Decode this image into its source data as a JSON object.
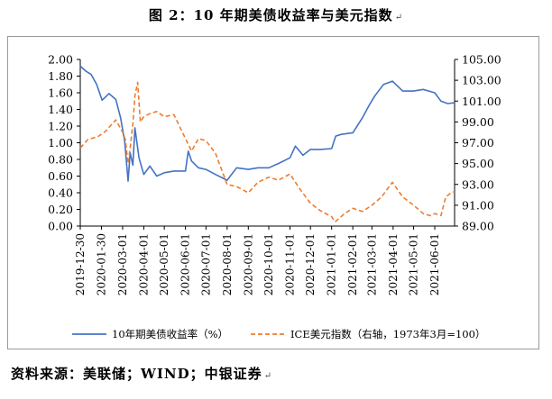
{
  "figure": {
    "title": "图 2：10 年期美债收益率与美元指数",
    "source": "资料来源：美联储；WIND；中银证券",
    "para_mark": "↵"
  },
  "colors": {
    "yield": "#4472c4",
    "dxy": "#ed7d31",
    "axis": "#000000",
    "frame": "#9a9a9a"
  },
  "chart_data": {
    "type": "line",
    "x_tick_labels": [
      "2019-12-30",
      "2020-01-30",
      "2020-03-01",
      "2020-04-01",
      "2020-05-01",
      "2020-06-01",
      "2020-07-01",
      "2020-08-01",
      "2020-09-01",
      "2020-10-01",
      "2020-11-01",
      "2020-12-01",
      "2021-01-01",
      "2021-02-01",
      "2021-03-01",
      "2021-04-01",
      "2021-05-01",
      "2021-06-01"
    ],
    "y_left": {
      "min": 0,
      "max": 2,
      "ticks": [
        "0.00",
        "0.20",
        "0.40",
        "0.60",
        "0.80",
        "1.00",
        "1.20",
        "1.40",
        "1.60",
        "1.80",
        "2.00"
      ]
    },
    "y_right": {
      "min": 89,
      "max": 105,
      "ticks": [
        "89.00",
        "91.00",
        "93.00",
        "95.00",
        "97.00",
        "99.00",
        "101.00",
        "103.00",
        "105.00"
      ]
    },
    "series": [
      {
        "name": "10年期美债收益率（%）",
        "axis": "left",
        "style": "solid",
        "x": [
          "2019-12-30",
          "2020-01-07",
          "2020-01-15",
          "2020-01-23",
          "2020-01-31",
          "2020-02-10",
          "2020-02-20",
          "2020-02-27",
          "2020-03-04",
          "2020-03-09",
          "2020-03-12",
          "2020-03-16",
          "2020-03-19",
          "2020-03-25",
          "2020-04-01",
          "2020-04-10",
          "2020-04-20",
          "2020-05-01",
          "2020-05-15",
          "2020-06-01",
          "2020-06-05",
          "2020-06-10",
          "2020-06-20",
          "2020-07-01",
          "2020-07-15",
          "2020-08-01",
          "2020-08-15",
          "2020-09-01",
          "2020-09-15",
          "2020-10-01",
          "2020-10-15",
          "2020-11-01",
          "2020-11-09",
          "2020-11-20",
          "2020-12-01",
          "2020-12-15",
          "2021-01-01",
          "2021-01-07",
          "2021-01-15",
          "2021-02-01",
          "2021-02-15",
          "2021-02-25",
          "2021-03-05",
          "2021-03-18",
          "2021-03-31",
          "2021-04-15",
          "2021-05-01",
          "2021-05-15",
          "2021-06-01",
          "2021-06-10",
          "2021-06-20",
          "2021-06-30"
        ],
        "y": [
          1.92,
          1.86,
          1.82,
          1.7,
          1.51,
          1.59,
          1.52,
          1.3,
          1.02,
          0.54,
          0.88,
          0.73,
          1.18,
          0.82,
          0.62,
          0.72,
          0.6,
          0.64,
          0.66,
          0.66,
          0.9,
          0.78,
          0.7,
          0.68,
          0.62,
          0.55,
          0.7,
          0.68,
          0.7,
          0.7,
          0.75,
          0.82,
          0.96,
          0.85,
          0.92,
          0.92,
          0.93,
          1.08,
          1.1,
          1.12,
          1.3,
          1.45,
          1.56,
          1.7,
          1.74,
          1.62,
          1.62,
          1.64,
          1.6,
          1.5,
          1.47,
          1.48
        ]
      },
      {
        "name": "ICE美元指数（右轴，1973年3月=100）",
        "axis": "right",
        "style": "dashed",
        "x": [
          "2019-12-30",
          "2020-01-10",
          "2020-01-25",
          "2020-02-05",
          "2020-02-20",
          "2020-03-01",
          "2020-03-05",
          "2020-03-09",
          "2020-03-12",
          "2020-03-16",
          "2020-03-19",
          "2020-03-23",
          "2020-03-27",
          "2020-04-01",
          "2020-04-10",
          "2020-04-20",
          "2020-05-01",
          "2020-05-15",
          "2020-06-01",
          "2020-06-10",
          "2020-06-20",
          "2020-07-01",
          "2020-07-15",
          "2020-08-01",
          "2020-08-15",
          "2020-09-01",
          "2020-09-15",
          "2020-10-01",
          "2020-10-15",
          "2020-11-01",
          "2020-11-15",
          "2020-12-01",
          "2020-12-15",
          "2021-01-01",
          "2021-01-06",
          "2021-01-20",
          "2021-02-01",
          "2021-02-15",
          "2021-03-01",
          "2021-03-15",
          "2021-03-31",
          "2021-04-15",
          "2021-05-01",
          "2021-05-15",
          "2021-05-25",
          "2021-06-01",
          "2021-06-10",
          "2021-06-17",
          "2021-06-25",
          "2021-06-30"
        ],
        "y": [
          96.5,
          97.3,
          97.6,
          98.1,
          99.2,
          98.0,
          97.3,
          95.0,
          96.5,
          98.8,
          101.5,
          102.8,
          99.0,
          99.5,
          99.8,
          100.0,
          99.5,
          99.7,
          97.4,
          96.2,
          97.4,
          97.2,
          96.0,
          93.0,
          92.8,
          92.2,
          93.2,
          93.7,
          93.4,
          94.0,
          92.6,
          91.2,
          90.5,
          89.9,
          89.4,
          90.2,
          90.7,
          90.4,
          91.0,
          91.8,
          93.2,
          91.8,
          91.0,
          90.2,
          90.0,
          90.2,
          90.0,
          91.8,
          92.2,
          92.3
        ]
      }
    ]
  }
}
